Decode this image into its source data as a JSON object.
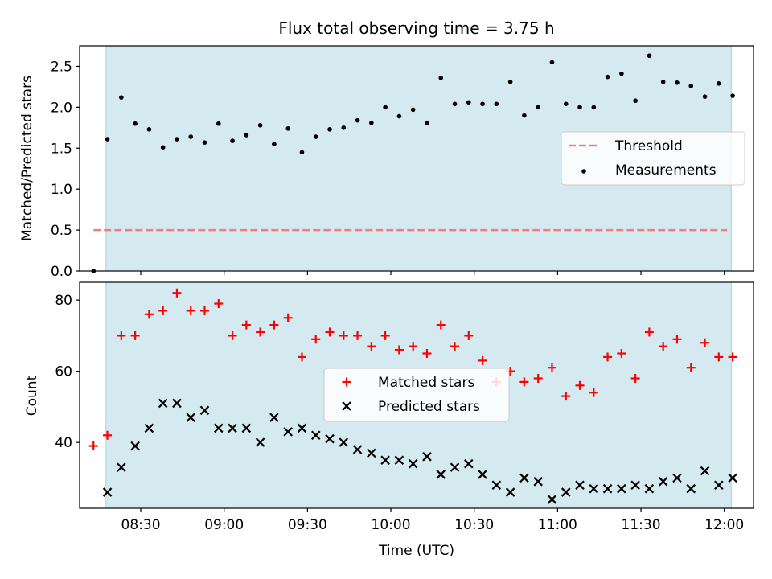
{
  "chart_data": {
    "type": "scatter",
    "title": "Flux total observing time = 3.75 h",
    "xlabel": "Time (UTC)",
    "x_ticks": [
      "08:30",
      "09:00",
      "09:30",
      "10:00",
      "10:30",
      "11:00",
      "11:30",
      "12:00"
    ],
    "x_tick_minutes": [
      510,
      540,
      570,
      600,
      630,
      660,
      690,
      720
    ],
    "xlim_minutes": [
      488,
      730.5
    ],
    "observing_window_minutes": [
      497.5,
      722.5
    ],
    "shade_color": "#d4eaf0",
    "panels": [
      {
        "ylabel": "Matched/Predicted stars",
        "ylim": [
          0,
          2.75
        ],
        "y_ticks": [
          "0.0",
          "0.5",
          "1.0",
          "1.5",
          "2.0",
          "2.5"
        ],
        "y_tick_values": [
          0,
          0.5,
          1.0,
          1.5,
          2.0,
          2.5
        ],
        "legend": {
          "placement": "center-right",
          "entries": [
            "Threshold",
            "Measurements"
          ]
        },
        "threshold": {
          "name": "Threshold",
          "value": 0.5,
          "x_range_minutes": [
            493,
            721
          ],
          "color": "#f08080"
        },
        "series": [
          {
            "name": "Measurements",
            "color": "#000000",
            "marker": "dot",
            "x_minutes": [
              493,
              498,
              503,
              508,
              513,
              518,
              523,
              528,
              533,
              538,
              543,
              548,
              553,
              558,
              563,
              568,
              573,
              578,
              583,
              588,
              593,
              598,
              603,
              608,
              613,
              618,
              623,
              628,
              633,
              638,
              643,
              648,
              653,
              658,
              663,
              668,
              673,
              678,
              683,
              688,
              693,
              698,
              703,
              708,
              713,
              718,
              723
            ],
            "values": [
              0.0,
              1.61,
              2.12,
              1.8,
              1.73,
              1.51,
              1.61,
              1.64,
              1.57,
              1.8,
              1.59,
              1.66,
              1.78,
              1.55,
              1.74,
              1.45,
              1.64,
              1.73,
              1.75,
              1.84,
              1.81,
              2.0,
              1.89,
              1.97,
              1.81,
              2.36,
              2.04,
              2.06,
              2.04,
              2.04,
              2.31,
              1.9,
              2.0,
              2.55,
              2.04,
              2.0,
              2.0,
              2.37,
              2.41,
              2.08,
              2.63,
              2.31,
              2.3,
              2.26,
              2.13,
              2.29,
              2.14
            ]
          }
        ]
      },
      {
        "ylabel": "Count",
        "ylim": [
          21.5,
          85
        ],
        "y_ticks": [
          "40",
          "60",
          "80"
        ],
        "y_tick_values": [
          40,
          60,
          80
        ],
        "legend": {
          "placement": "center",
          "entries": [
            "Matched stars",
            "Predicted stars"
          ]
        },
        "series": [
          {
            "name": "Matched stars",
            "color": "#ff0000",
            "marker": "plus",
            "x_minutes": [
              493,
              498,
              503,
              508,
              513,
              518,
              523,
              528,
              533,
              538,
              543,
              548,
              553,
              558,
              563,
              568,
              573,
              578,
              583,
              588,
              593,
              598,
              603,
              608,
              613,
              618,
              623,
              628,
              633,
              638,
              643,
              648,
              653,
              658,
              663,
              668,
              673,
              678,
              683,
              688,
              693,
              698,
              703,
              708,
              713,
              718,
              723
            ],
            "values": [
              39,
              42,
              70,
              70,
              76,
              77,
              82,
              77,
              77,
              79,
              70,
              73,
              71,
              73,
              75,
              64,
              69,
              71,
              70,
              70,
              67,
              70,
              66,
              67,
              65,
              73,
              67,
              70,
              63,
              57,
              60,
              57,
              58,
              61,
              53,
              56,
              54,
              64,
              65,
              58,
              71,
              67,
              69,
              61,
              68,
              64,
              64
            ]
          },
          {
            "name": "Predicted stars",
            "color": "#000000",
            "marker": "x",
            "x_minutes": [
              498,
              503,
              508,
              513,
              518,
              523,
              528,
              533,
              538,
              543,
              548,
              553,
              558,
              563,
              568,
              573,
              578,
              583,
              588,
              593,
              598,
              603,
              608,
              613,
              618,
              623,
              628,
              633,
              638,
              643,
              648,
              653,
              658,
              663,
              668,
              673,
              678,
              683,
              688,
              693,
              698,
              703,
              708,
              713,
              718,
              723
            ],
            "values": [
              26,
              33,
              39,
              44,
              51,
              51,
              47,
              49,
              44,
              44,
              44,
              40,
              47,
              43,
              44,
              42,
              41,
              40,
              38,
              37,
              35,
              35,
              34,
              36,
              31,
              33,
              34,
              31,
              28,
              26,
              30,
              29,
              24,
              26,
              28,
              27,
              27,
              27,
              28,
              27,
              29,
              30,
              27,
              32,
              28,
              30
            ]
          }
        ]
      }
    ]
  }
}
